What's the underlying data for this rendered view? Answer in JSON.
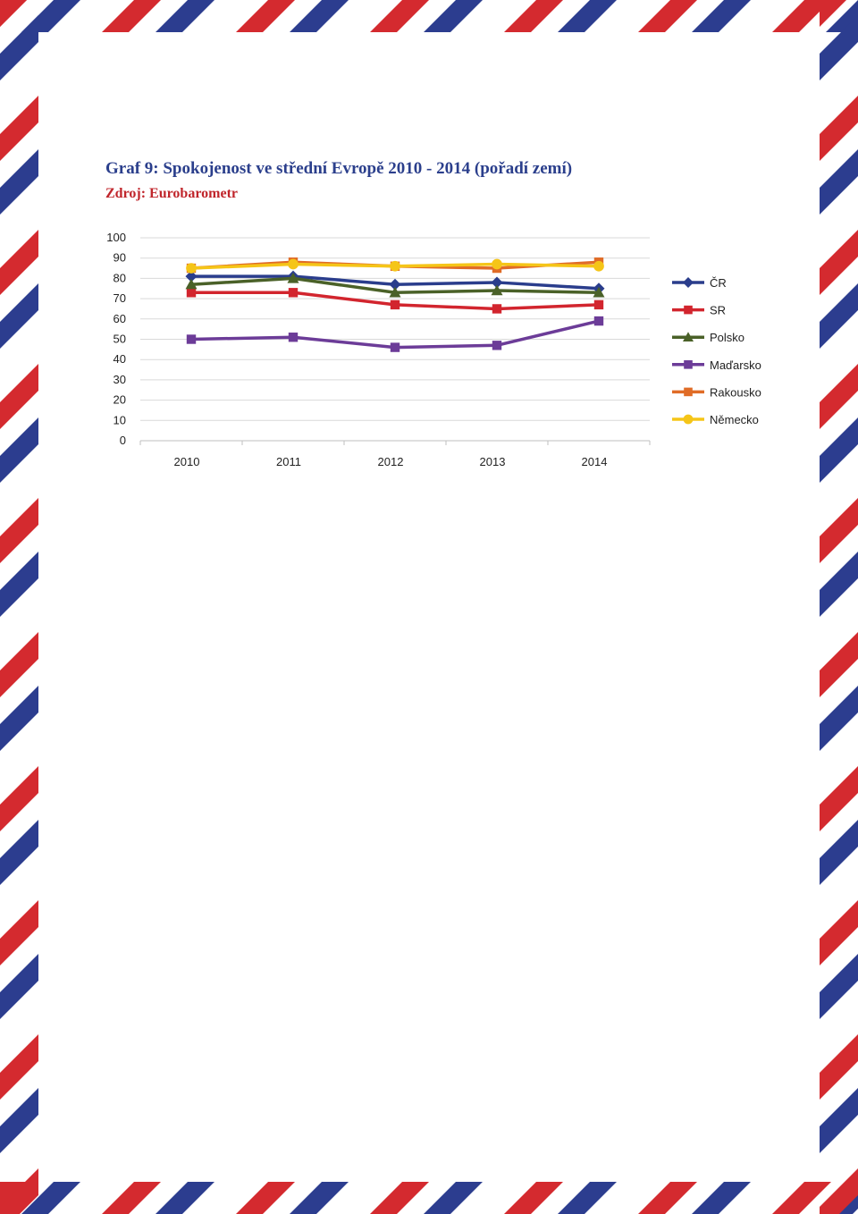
{
  "colors": {
    "stripe_red": "#d42a2f",
    "stripe_blue": "#2c3d8f",
    "title": "#2b3f8c",
    "subtitle": "#c0252b"
  },
  "title": "Graf 9: Spokojenost ve střední Evropě 2010 - 2014 (pořadí zemí)",
  "subtitle": "Zdroj: Eurobarometr",
  "chart_data": {
    "type": "line",
    "title": "Graf 9: Spokojenost ve střední Evropě 2010 - 2014 (pořadí zemí)",
    "x": [
      "2010",
      "2011",
      "2012",
      "2013",
      "2014"
    ],
    "ylim": [
      0,
      100
    ],
    "yticks": [
      "0",
      "10",
      "20",
      "30",
      "40",
      "50",
      "60",
      "70",
      "80",
      "90",
      "100"
    ],
    "grid": true,
    "legend": "right",
    "series": [
      {
        "name": "ČR",
        "values": [
          81,
          81,
          77,
          78,
          75
        ],
        "color": "#2a3d8c",
        "marker": "diamond"
      },
      {
        "name": "SR",
        "values": [
          73,
          73,
          67,
          65,
          67
        ],
        "color": "#d2252e",
        "marker": "square"
      },
      {
        "name": "Polsko",
        "values": [
          77,
          80,
          73,
          74,
          73
        ],
        "color": "#4a6128",
        "marker": "triangle"
      },
      {
        "name": "Maďarsko",
        "values": [
          50,
          51,
          46,
          47,
          59
        ],
        "color": "#6c3c98",
        "marker": "square"
      },
      {
        "name": "Rakousko",
        "values": [
          85,
          88,
          86,
          85,
          88
        ],
        "color": "#e06c27",
        "marker": "square"
      },
      {
        "name": "Německo",
        "values": [
          85,
          87,
          86,
          87,
          86
        ],
        "color": "#f5c518",
        "marker": "circle"
      }
    ]
  }
}
